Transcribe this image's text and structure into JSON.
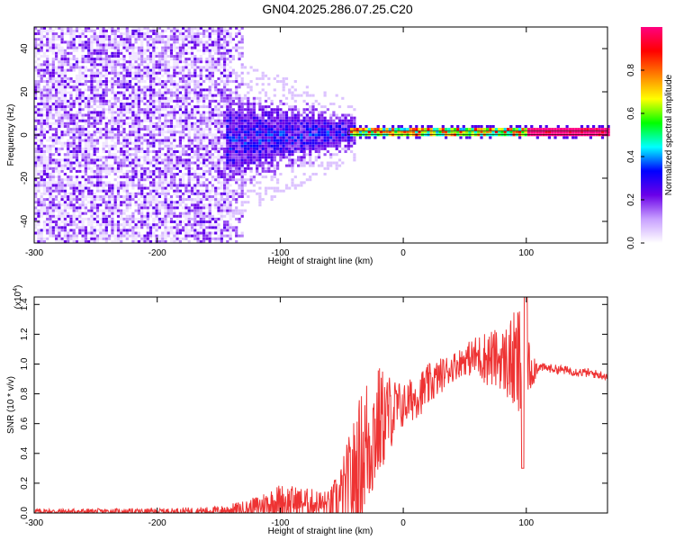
{
  "title": "GN04.2025.286.07.25.C20",
  "chart_data": [
    {
      "type": "heatmap",
      "name": "spectrogram",
      "xlabel": "Height of straight line (km)",
      "ylabel": "Frequency (Hz)",
      "xlim": [
        -300,
        166
      ],
      "ylim": [
        -50,
        50
      ],
      "xticks": [
        -300,
        -200,
        -100,
        0,
        100
      ],
      "xtick_labels": [
        "-300",
        "-200",
        "-100",
        "0",
        "100"
      ],
      "yticks": [
        -40,
        -20,
        0,
        20,
        40
      ],
      "ytick_labels": [
        "-40",
        "-20",
        "0",
        "20",
        "40"
      ],
      "regions": [
        {
          "name": "noise",
          "x_range": [
            -300,
            -135
          ],
          "freq_range": [
            -50,
            50
          ],
          "amplitude_range": [
            0.05,
            0.25
          ]
        },
        {
          "name": "transition",
          "x_range": [
            -145,
            -40
          ],
          "freq_range": [
            -25,
            20
          ],
          "amplitude_range": [
            0.15,
            0.45
          ]
        },
        {
          "name": "signal-band",
          "x_range": [
            -45,
            166
          ],
          "freq_center": 0.5,
          "freq_halfwidth": 1.5,
          "amplitude_range": [
            0.4,
            1.0
          ]
        }
      ],
      "colorbar": {
        "label": "Normalized spectral amplitude",
        "range": [
          0,
          1
        ],
        "ticks": [
          0.0,
          0.2,
          0.4,
          0.6,
          0.8
        ],
        "tick_labels": [
          "0.0",
          "0.2",
          "0.4",
          "0.6",
          "0.8"
        ],
        "colors": [
          "#ffffff",
          "#c8a0ff",
          "#6a00e8",
          "#0000ff",
          "#00ffff",
          "#00ff00",
          "#ffff00",
          "#ff8000",
          "#ff0000",
          "#ff0080"
        ]
      }
    },
    {
      "type": "line",
      "name": "snr",
      "xlabel": "Height of straight line (km)",
      "ylabel": "SNR (10 * v/v)",
      "y_multiplier": "(x10",
      "y_multiplier_exp": "4",
      "y_multiplier_close": ")",
      "xlim": [
        -300,
        166
      ],
      "ylim": [
        0,
        1.45
      ],
      "xticks": [
        -300,
        -200,
        -100,
        0,
        100
      ],
      "xtick_labels": [
        "-300",
        "-200",
        "-100",
        "0",
        "100"
      ],
      "yticks": [
        0.0,
        0.2,
        0.4,
        0.6,
        0.8,
        1.0,
        1.2,
        1.4
      ],
      "ytick_labels": [
        "0.0",
        "0.2",
        "0.4",
        "0.6",
        "0.8",
        "1.0",
        "1.2",
        "1.4"
      ],
      "line_color": "#ee3333",
      "envelope": {
        "x": [
          -300,
          -250,
          -200,
          -150,
          -125,
          -110,
          -100,
          -80,
          -60,
          -50,
          -40,
          -30,
          -20,
          -10,
          0,
          10,
          20,
          30,
          40,
          50,
          60,
          70,
          80,
          90,
          95,
          100,
          110,
          130,
          150,
          166
        ],
        "base": [
          0.01,
          0.01,
          0.01,
          0.015,
          0.03,
          0.06,
          0.08,
          0.07,
          0.05,
          0.1,
          0.25,
          0.45,
          0.6,
          0.68,
          0.72,
          0.78,
          0.85,
          0.92,
          0.98,
          1.03,
          1.05,
          1.04,
          1.03,
          1.0,
          0.98,
          0.97,
          0.98,
          0.96,
          0.94,
          0.92
        ],
        "noise": [
          0.02,
          0.02,
          0.02,
          0.03,
          0.06,
          0.1,
          0.12,
          0.1,
          0.1,
          0.25,
          0.4,
          0.5,
          0.4,
          0.25,
          0.15,
          0.15,
          0.15,
          0.12,
          0.1,
          0.1,
          0.15,
          0.2,
          0.2,
          0.35,
          0.45,
          0.25,
          0.03,
          0.03,
          0.03,
          0.03
        ]
      }
    }
  ]
}
